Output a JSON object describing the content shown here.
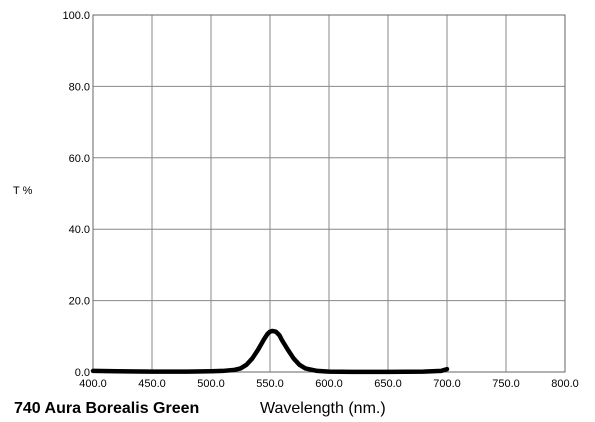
{
  "chart_data": {
    "type": "line",
    "title": "740 Aura Borealis Green",
    "xlabel": "Wavelength (nm.)",
    "ylabel": "T %",
    "xlim": [
      400,
      800
    ],
    "ylim": [
      0,
      100
    ],
    "grid": true,
    "x_ticks": [
      "400.0",
      "450.0",
      "500.0",
      "550.0",
      "600.0",
      "650.0",
      "700.0",
      "750.0",
      "800.0"
    ],
    "y_ticks": [
      "100.0",
      "80.0",
      "60.0",
      "40.0",
      "20.0",
      "0.0"
    ],
    "series": [
      {
        "x": [
          400,
          420,
          450,
          480,
          500,
          510,
          520,
          525,
          530,
          535,
          540,
          545,
          548,
          550,
          552,
          555,
          558,
          560,
          565,
          570,
          575,
          580,
          590,
          600,
          620,
          650,
          680,
          695,
          700
        ],
        "y": [
          0.3,
          0.2,
          0.1,
          0.1,
          0.2,
          0.3,
          0.6,
          1.0,
          2.0,
          3.8,
          6.3,
          9.2,
          10.7,
          11.3,
          11.5,
          11.3,
          10.3,
          9.0,
          6.3,
          3.8,
          2.0,
          1.0,
          0.3,
          0.1,
          0.05,
          0.05,
          0.1,
          0.3,
          0.8
        ]
      }
    ]
  }
}
